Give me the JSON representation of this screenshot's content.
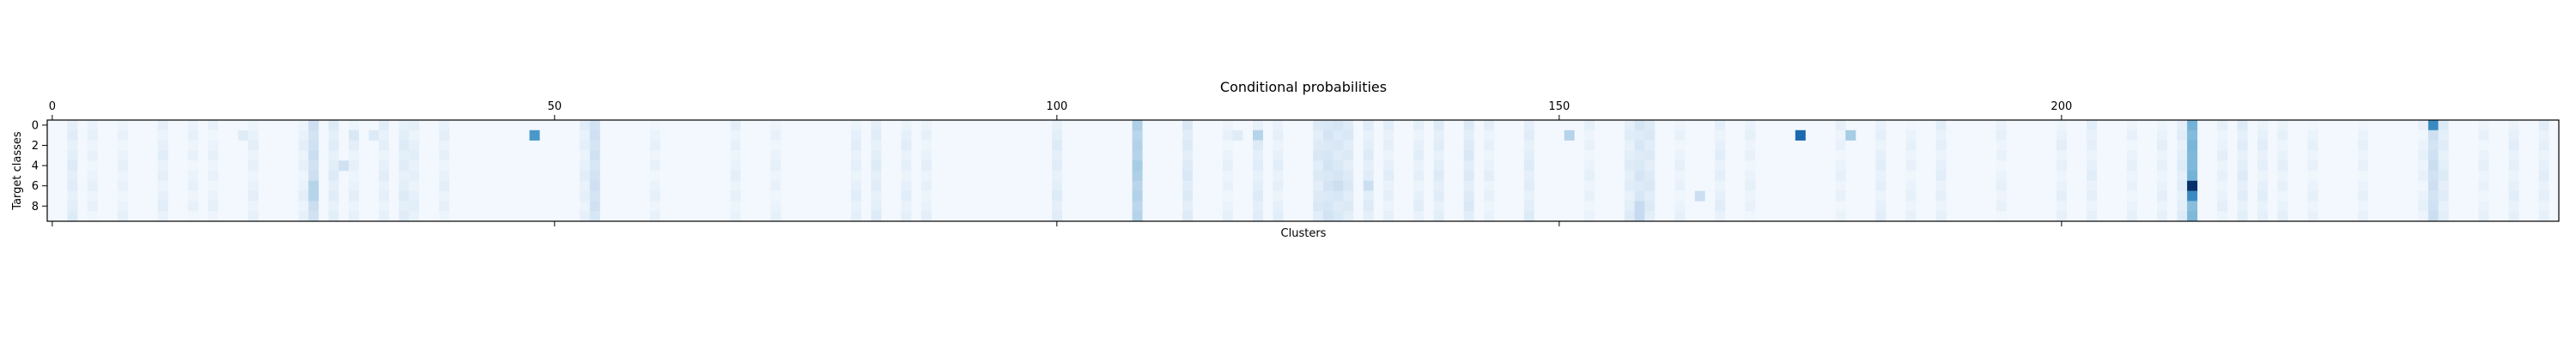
{
  "chart_data": {
    "type": "heatmap",
    "title": "Conditional probabilities",
    "xlabel": "Clusters",
    "ylabel": "Target classes",
    "x_ticks": [
      0,
      50,
      100,
      150,
      200
    ],
    "y_ticks": [
      0,
      2,
      4,
      6,
      8
    ],
    "n_rows": 10,
    "n_cols": 250,
    "xlim": [
      -0.5,
      249.5
    ],
    "ylim": [
      9.5,
      -0.5
    ],
    "colormap": "Blues",
    "colormap_colors": [
      "#f7fbff",
      "#deebf7",
      "#c6dbef",
      "#9ecae1",
      "#6baed6",
      "#4292c6",
      "#2171b5",
      "#08519c",
      "#08306b"
    ],
    "x_axis_position": "top",
    "value_range": [
      0,
      1
    ],
    "background_value": 0.02,
    "column_profiles": [
      {
        "col": 2,
        "value": 0.1
      },
      {
        "col": 4,
        "value": 0.06
      },
      {
        "col": 7,
        "value": 0.06
      },
      {
        "col": 11,
        "value": 0.08
      },
      {
        "col": 14,
        "value": 0.06
      },
      {
        "col": 16,
        "value": 0.06
      },
      {
        "col": 20,
        "value": 0.07
      },
      {
        "col": 25,
        "value": 0.07
      },
      {
        "col": 26,
        "value": 0.2
      },
      {
        "col": 28,
        "value": 0.1
      },
      {
        "col": 30,
        "value": 0.07
      },
      {
        "col": 33,
        "value": 0.08
      },
      {
        "col": 35,
        "value": 0.1
      },
      {
        "col": 36,
        "value": 0.08
      },
      {
        "col": 39,
        "value": 0.07
      },
      {
        "col": 53,
        "value": 0.08
      },
      {
        "col": 54,
        "value": 0.18
      },
      {
        "col": 60,
        "value": 0.06
      },
      {
        "col": 68,
        "value": 0.07
      },
      {
        "col": 72,
        "value": 0.06
      },
      {
        "col": 80,
        "value": 0.08
      },
      {
        "col": 82,
        "value": 0.1
      },
      {
        "col": 85,
        "value": 0.08
      },
      {
        "col": 87,
        "value": 0.07
      },
      {
        "col": 100,
        "value": 0.1
      },
      {
        "col": 108,
        "value": 0.3
      },
      {
        "col": 113,
        "value": 0.12
      },
      {
        "col": 117,
        "value": 0.06
      },
      {
        "col": 120,
        "value": 0.1
      },
      {
        "col": 122,
        "value": 0.08
      },
      {
        "col": 126,
        "value": 0.12
      },
      {
        "col": 127,
        "value": 0.16
      },
      {
        "col": 128,
        "value": 0.14
      },
      {
        "col": 129,
        "value": 0.12
      },
      {
        "col": 131,
        "value": 0.1
      },
      {
        "col": 133,
        "value": 0.08
      },
      {
        "col": 136,
        "value": 0.08
      },
      {
        "col": 138,
        "value": 0.1
      },
      {
        "col": 141,
        "value": 0.12
      },
      {
        "col": 143,
        "value": 0.07
      },
      {
        "col": 147,
        "value": 0.1
      },
      {
        "col": 153,
        "value": 0.06
      },
      {
        "col": 157,
        "value": 0.1
      },
      {
        "col": 158,
        "value": 0.14
      },
      {
        "col": 159,
        "value": 0.12
      },
      {
        "col": 162,
        "value": 0.06
      },
      {
        "col": 166,
        "value": 0.08
      },
      {
        "col": 169,
        "value": 0.06
      },
      {
        "col": 178,
        "value": 0.06
      },
      {
        "col": 182,
        "value": 0.08
      },
      {
        "col": 185,
        "value": 0.06
      },
      {
        "col": 188,
        "value": 0.08
      },
      {
        "col": 194,
        "value": 0.06
      },
      {
        "col": 200,
        "value": 0.07
      },
      {
        "col": 203,
        "value": 0.08
      },
      {
        "col": 207,
        "value": 0.06
      },
      {
        "col": 210,
        "value": 0.07
      },
      {
        "col": 212,
        "value": 0.1
      },
      {
        "col": 213,
        "value": 0.45
      },
      {
        "col": 216,
        "value": 0.07
      },
      {
        "col": 218,
        "value": 0.1
      },
      {
        "col": 220,
        "value": 0.08
      },
      {
        "col": 222,
        "value": 0.07
      },
      {
        "col": 225,
        "value": 0.06
      },
      {
        "col": 230,
        "value": 0.06
      },
      {
        "col": 236,
        "value": 0.06
      },
      {
        "col": 237,
        "value": 0.2
      },
      {
        "col": 238,
        "value": 0.1
      },
      {
        "col": 242,
        "value": 0.06
      },
      {
        "col": 245,
        "value": 0.08
      },
      {
        "col": 248,
        "value": 0.08
      }
    ],
    "highlight_cells": [
      {
        "row": 1,
        "col": 48,
        "value": 0.6
      },
      {
        "row": 1,
        "col": 174,
        "value": 0.78
      },
      {
        "row": 1,
        "col": 179,
        "value": 0.35
      },
      {
        "row": 0,
        "col": 108,
        "value": 0.3
      },
      {
        "row": 0,
        "col": 237,
        "value": 0.65
      },
      {
        "row": 1,
        "col": 19,
        "value": 0.12
      },
      {
        "row": 1,
        "col": 30,
        "value": 0.15
      },
      {
        "row": 1,
        "col": 32,
        "value": 0.13
      },
      {
        "row": 1,
        "col": 118,
        "value": 0.12
      },
      {
        "row": 1,
        "col": 120,
        "value": 0.3
      },
      {
        "row": 1,
        "col": 151,
        "value": 0.3
      },
      {
        "row": 3,
        "col": 108,
        "value": 0.3
      },
      {
        "row": 4,
        "col": 29,
        "value": 0.2
      },
      {
        "row": 4,
        "col": 108,
        "value": 0.35
      },
      {
        "row": 2,
        "col": 213,
        "value": 0.45
      },
      {
        "row": 3,
        "col": 213,
        "value": 0.45
      },
      {
        "row": 6,
        "col": 213,
        "value": 1.0
      },
      {
        "row": 7,
        "col": 213,
        "value": 0.65
      },
      {
        "row": 8,
        "col": 213,
        "value": 0.4
      },
      {
        "row": 9,
        "col": 213,
        "value": 0.4
      },
      {
        "row": 6,
        "col": 26,
        "value": 0.3
      },
      {
        "row": 7,
        "col": 26,
        "value": 0.3
      },
      {
        "row": 6,
        "col": 128,
        "value": 0.22
      },
      {
        "row": 6,
        "col": 131,
        "value": 0.22
      },
      {
        "row": 7,
        "col": 164,
        "value": 0.22
      },
      {
        "row": 8,
        "col": 158,
        "value": 0.25
      },
      {
        "row": 9,
        "col": 158,
        "value": 0.25
      }
    ]
  }
}
